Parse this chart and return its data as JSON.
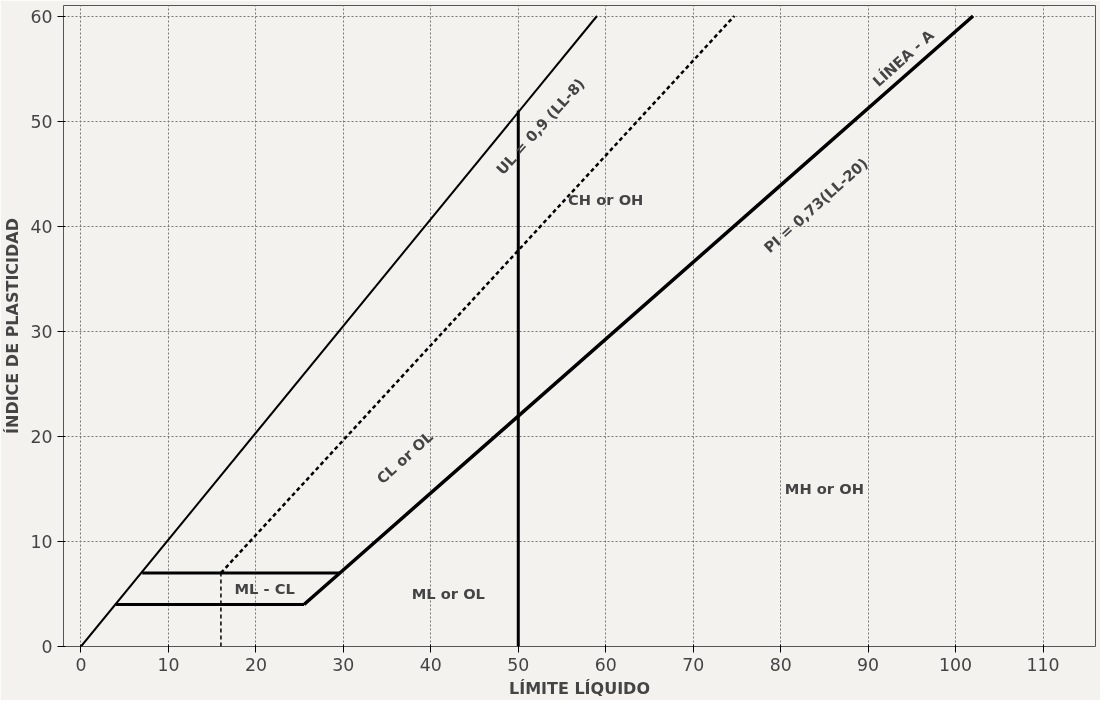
{
  "chart_data": {
    "type": "line",
    "xlabel": "LÍMITE LÍQUIDO",
    "ylabel": "ÍNDICE DE PLASTICIDAD",
    "xlim": [
      -2,
      116
    ],
    "ylim": [
      0,
      61
    ],
    "xticks": [
      0,
      10,
      20,
      30,
      40,
      50,
      60,
      70,
      80,
      90,
      100,
      110
    ],
    "yticks": [
      0,
      10,
      20,
      30,
      40,
      50,
      60
    ],
    "grid": true,
    "marker": "none",
    "series": [
      {
        "color": "#000000",
        "x": [
          0,
          59
        ],
        "values": [
          0,
          60
        ]
      },
      {
        "color": "#000000",
        "x": [
          25.5,
          29.6,
          102
        ],
        "values": [
          4,
          7,
          60
        ]
      },
      {
        "color": "#000000",
        "x": [
          16,
          74.7
        ],
        "values": [
          7,
          60
        ],
        "line_style": "dashed"
      },
      {
        "color": "#000000",
        "x": [
          16,
          16
        ],
        "values": [
          0,
          7
        ],
        "line_style": "dashed"
      },
      {
        "color": "#000000",
        "x": [
          50,
          50
        ],
        "values": [
          0,
          51
        ]
      },
      {
        "color": "#000000",
        "x": [
          7,
          29.6
        ],
        "values": [
          7,
          7
        ]
      },
      {
        "color": "#000000",
        "x": [
          4,
          25.5
        ],
        "values": [
          4,
          4
        ]
      }
    ],
    "annotations": [
      "CL or OL",
      "ML or OL",
      "MH or OH",
      "CH or OH",
      "ML - CL",
      "UL = 0,9 (LL-8)",
      "PI = 0,73(LL-20)",
      "LÍNEA - A"
    ]
  }
}
